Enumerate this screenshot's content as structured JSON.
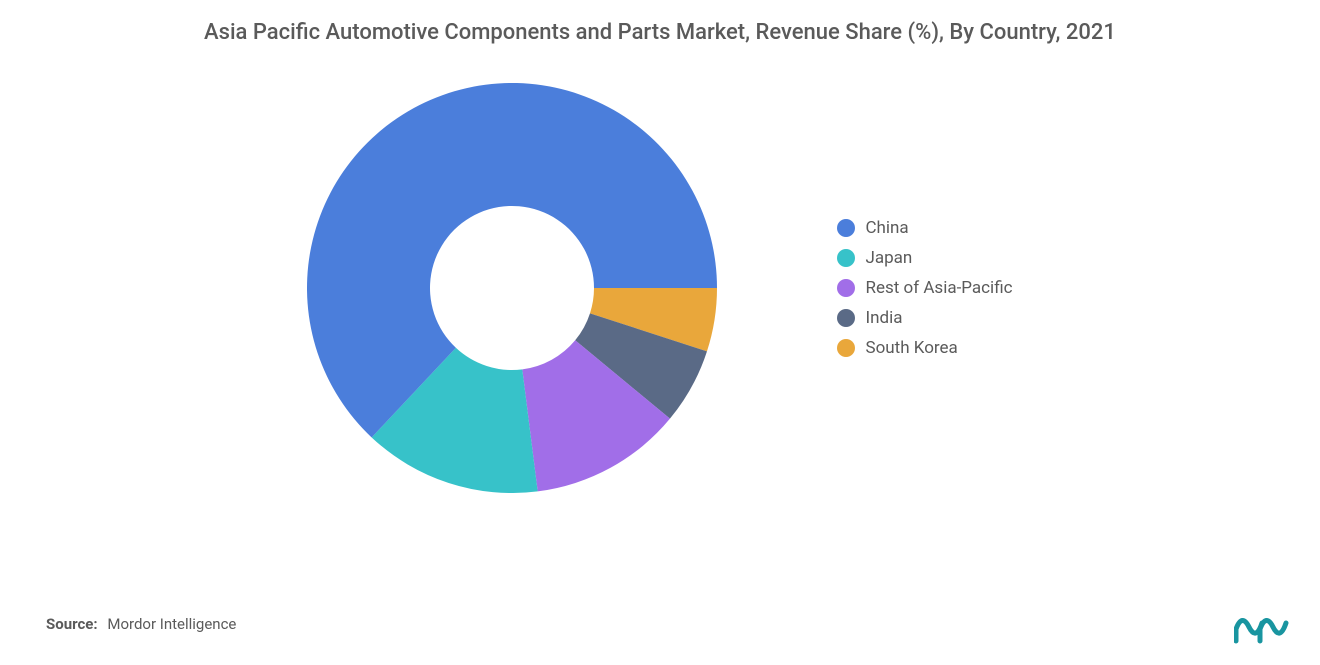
{
  "title": "Asia Pacific Automotive Components and Parts Market, Revenue Share (%), By Country, 2021",
  "chart": {
    "type": "donut",
    "inner_radius_pct": 40,
    "outer_radius_pct": 100,
    "start_angle_deg": 90,
    "direction": "clockwise",
    "background_color": "#ffffff",
    "slices": [
      {
        "label": "China",
        "value": 63,
        "color": "#4b7edb"
      },
      {
        "label": "Japan",
        "value": 14,
        "color": "#37c2c9"
      },
      {
        "label": "Rest of Asia-Pacific",
        "value": 12,
        "color": "#a16ee8"
      },
      {
        "label": "India",
        "value": 6,
        "color": "#5a6a86"
      },
      {
        "label": "South Korea",
        "value": 5,
        "color": "#e9a73b"
      }
    ]
  },
  "legend": {
    "items": [
      {
        "label": "China",
        "color": "#4b7edb"
      },
      {
        "label": "Japan",
        "color": "#37c2c9"
      },
      {
        "label": "Rest of Asia-Pacific",
        "color": "#a16ee8"
      },
      {
        "label": "India",
        "color": "#5a6a86"
      },
      {
        "label": "South Korea",
        "color": "#e9a73b"
      }
    ],
    "text_color": "#5a5a5a",
    "fontsize": 17
  },
  "source_prefix": "Source:",
  "source_text": "Mordor Intelligence",
  "logo_color": "#1995a0"
}
